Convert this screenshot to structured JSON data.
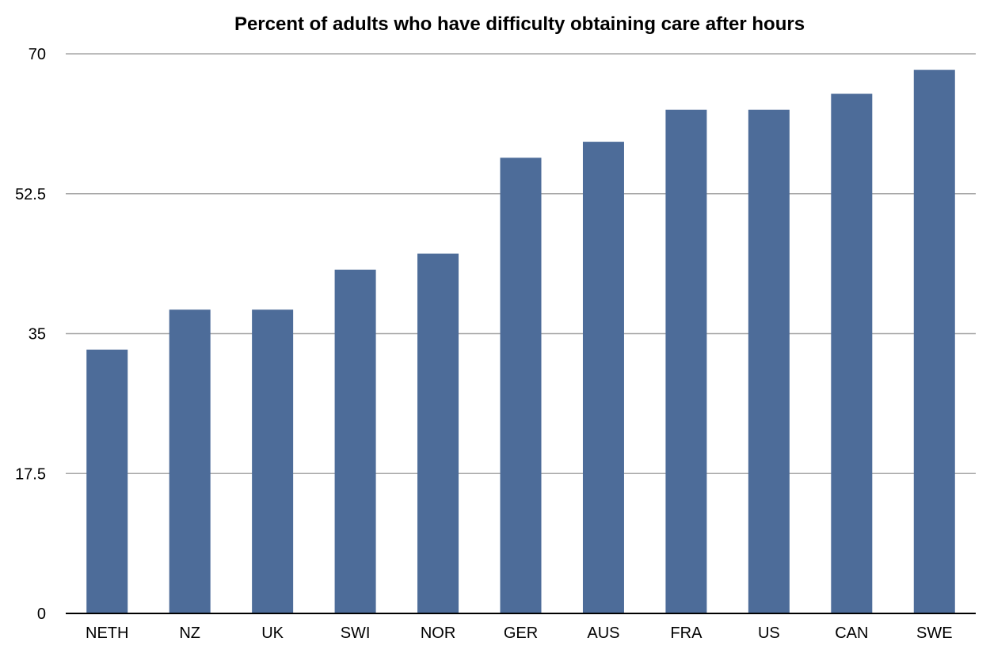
{
  "chart_data": {
    "type": "bar",
    "title": "Percent of adults who have difficulty obtaining care after hours",
    "xlabel": "",
    "ylabel": "",
    "categories": [
      "NETH",
      "NZ",
      "UK",
      "SWI",
      "NOR",
      "GER",
      "AUS",
      "FRA",
      "US",
      "CAN",
      "SWE"
    ],
    "values": [
      33,
      38,
      38,
      43,
      45,
      57,
      59,
      63,
      63,
      65,
      68
    ],
    "ylim": [
      0,
      70
    ],
    "yticks": [
      0,
      17.5,
      35,
      52.5,
      70
    ],
    "ytick_labels": [
      "0",
      "17.5",
      "35",
      "52.5",
      "70"
    ],
    "grid": true,
    "legend": "none",
    "bar_color": "#4d6c99"
  }
}
